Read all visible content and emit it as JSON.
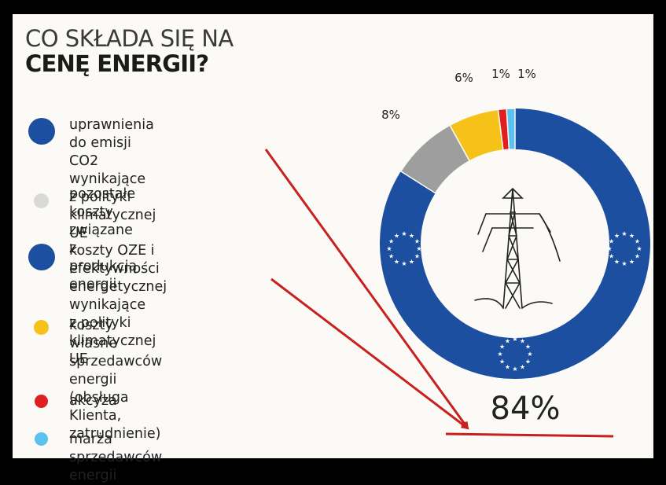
{
  "title": {
    "line1": "CO SKŁADA SIĘ NA",
    "line2": "CENĘ ENERGII?"
  },
  "legend": [
    {
      "label": "uprawnienia do emisji CO2\nwynikające z polityki\nklimatycznej UE",
      "color": "#1d4fa0"
    },
    {
      "label": "pozostałe koszty związane\nz produkcją energii",
      "color": "#d9d9d9"
    },
    {
      "label": "koszty OZE i efektywności\nenergetycznej wynikające\nz polityki klimatycznej UE",
      "color": "#1d4fa0"
    },
    {
      "label": "koszty własne sprzedawców\nenergii (obsługa Klienta,\nzatrudnienie)",
      "color": "#f6c21a"
    },
    {
      "label": "akcyza",
      "color": "#e02020"
    },
    {
      "label": "marża sprzedawców energii",
      "color": "#5bc2f0"
    }
  ],
  "chart_data": {
    "type": "pie",
    "title": "CENĘ ENERGII?",
    "slices": [
      {
        "label": "uprawnienia do emisji CO2 + koszty OZE i efektywności energetycznej (polityka klimatyczna UE)",
        "value": 84,
        "display": "84%",
        "color": "#1d4fa0"
      },
      {
        "label": "pozostałe koszty związane z produkcją energii",
        "value": 8,
        "display": "8%",
        "color": "#9e9e9e"
      },
      {
        "label": "koszty własne sprzedawców energii",
        "value": 6,
        "display": "6%",
        "color": "#f6c21a"
      },
      {
        "label": "akcyza",
        "value": 1,
        "display": "1%",
        "color": "#e02020"
      },
      {
        "label": "marża sprzedawców energii",
        "value": 1,
        "display": "1%",
        "color": "#5bc2f0"
      }
    ]
  }
}
